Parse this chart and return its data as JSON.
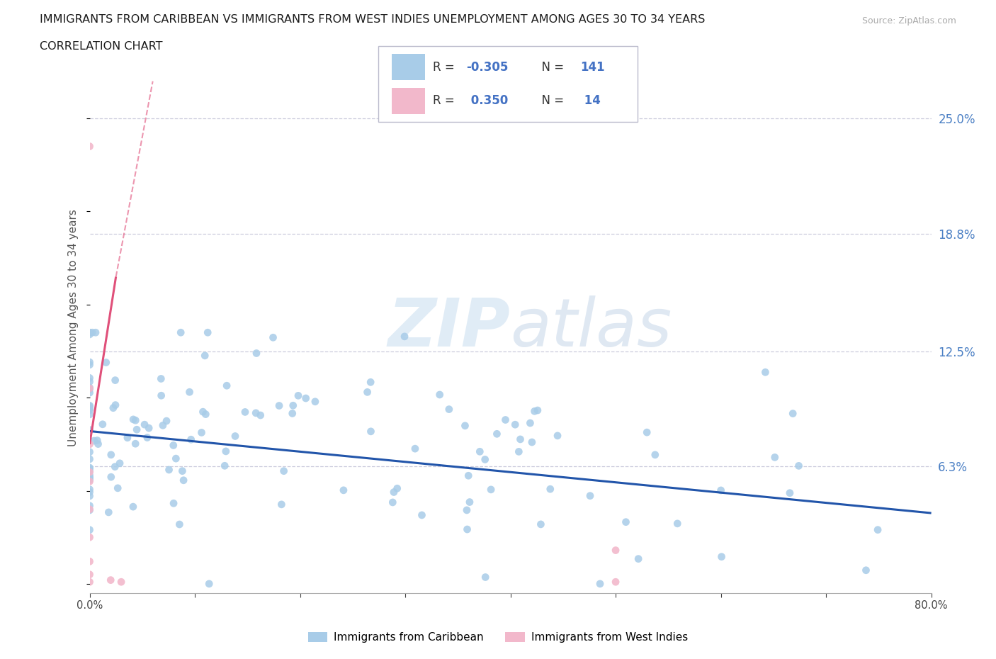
{
  "title_line1": "IMMIGRANTS FROM CARIBBEAN VS IMMIGRANTS FROM WEST INDIES UNEMPLOYMENT AMONG AGES 30 TO 34 YEARS",
  "title_line2": "CORRELATION CHART",
  "source_text": "Source: ZipAtlas.com",
  "ylabel": "Unemployment Among Ages 30 to 34 years",
  "xmin": 0.0,
  "xmax": 0.8,
  "ymin": -0.005,
  "ymax": 0.28,
  "ytick_vals": [
    0.063,
    0.125,
    0.188,
    0.25
  ],
  "ytick_labels": [
    "6.3%",
    "12.5%",
    "18.8%",
    "25.0%"
  ],
  "xtick_vals": [
    0.0,
    0.1,
    0.2,
    0.3,
    0.4,
    0.5,
    0.6,
    0.7,
    0.8
  ],
  "xtick_labels": [
    "0.0%",
    "",
    "",
    "",
    "",
    "",
    "",
    "",
    "80.0%"
  ],
  "legend_r1": "-0.305",
  "legend_n1": "141",
  "legend_r2": "0.350",
  "legend_n2": "14",
  "color_blue": "#a8cce8",
  "color_pink": "#f2b8cb",
  "color_line_blue": "#2255aa",
  "color_line_pink": "#e0507a",
  "color_label": "#4a7fc4",
  "color_text_blue": "#4472c4",
  "grid_color": "#ccccdd",
  "watermark_color": "#c8ddf0",
  "blue_line_y0": 0.082,
  "blue_line_y1": 0.038,
  "pink_line_x0": 0.0,
  "pink_line_x1": 0.025,
  "pink_line_y0": 0.075,
  "pink_line_y1": 0.165,
  "pink_line_dash_x0": 0.025,
  "pink_line_dash_x1": 0.06,
  "pink_line_dash_y0": 0.165,
  "pink_line_dash_y1": 0.27
}
